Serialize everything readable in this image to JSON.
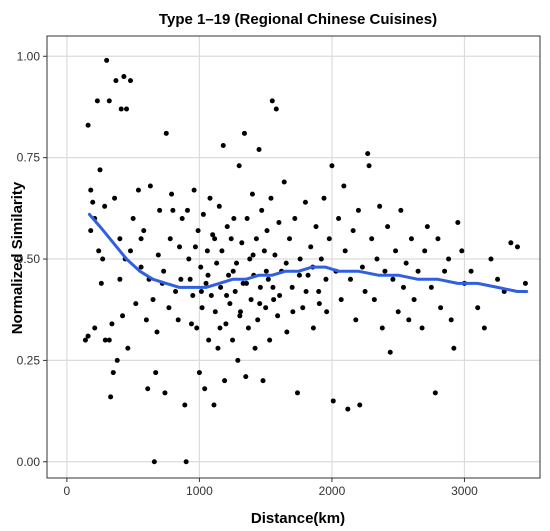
{
  "chart_data": {
    "type": "scatter",
    "title": "Type 1–19 (Regional Chinese Cuisines)",
    "xlabel": "Distance(km)",
    "ylabel": "Normalized Similarity",
    "xlim": [
      -150,
      3570
    ],
    "ylim": [
      -0.04,
      1.05
    ],
    "x_ticks": [
      0,
      1000,
      2000,
      3000
    ],
    "x_tick_labels": [
      "0",
      "1000",
      "2000",
      "3000"
    ],
    "y_ticks": [
      0.0,
      0.25,
      0.5,
      0.75,
      1.0
    ],
    "y_tick_labels": [
      "0.00",
      "0.25",
      "0.50",
      "0.75",
      "1.00"
    ],
    "grid": true,
    "colors": {
      "points": "#000000",
      "smooth_line": "#3060e0",
      "grid": "#dcdcdc",
      "axis": "#333333"
    },
    "points": [
      [
        160,
        0.83
      ],
      [
        180,
        0.67
      ],
      [
        195,
        0.64
      ],
      [
        210,
        0.6
      ],
      [
        230,
        0.89
      ],
      [
        250,
        0.72
      ],
      [
        270,
        0.5
      ],
      [
        285,
        0.63
      ],
      [
        300,
        0.99
      ],
      [
        320,
        0.89
      ],
      [
        330,
        0.16
      ],
      [
        350,
        0.22
      ],
      [
        370,
        0.94
      ],
      [
        400,
        0.55
      ],
      [
        410,
        0.87
      ],
      [
        430,
        0.95
      ],
      [
        450,
        0.87
      ],
      [
        480,
        0.94
      ],
      [
        140,
        0.3
      ],
      [
        160,
        0.31
      ],
      [
        180,
        0.57
      ],
      [
        210,
        0.33
      ],
      [
        240,
        0.52
      ],
      [
        260,
        0.44
      ],
      [
        290,
        0.3
      ],
      [
        320,
        0.3
      ],
      [
        340,
        0.34
      ],
      [
        360,
        0.65
      ],
      [
        380,
        0.25
      ],
      [
        400,
        0.45
      ],
      [
        420,
        0.36
      ],
      [
        440,
        0.5
      ],
      [
        460,
        0.28
      ],
      [
        480,
        0.52
      ],
      [
        500,
        0.6
      ],
      [
        520,
        0.39
      ],
      [
        540,
        0.67
      ],
      [
        560,
        0.48
      ],
      [
        580,
        0.57
      ],
      [
        600,
        0.35
      ],
      [
        610,
        0.18
      ],
      [
        630,
        0.68
      ],
      [
        650,
        0.4
      ],
      [
        660,
        0.0
      ],
      [
        670,
        0.22
      ],
      [
        690,
        0.51
      ],
      [
        700,
        0.62
      ],
      [
        720,
        0.44
      ],
      [
        740,
        0.17
      ],
      [
        750,
        0.81
      ],
      [
        770,
        0.38
      ],
      [
        780,
        0.55
      ],
      [
        800,
        0.62
      ],
      [
        820,
        0.42
      ],
      [
        840,
        0.35
      ],
      [
        850,
        0.53
      ],
      [
        870,
        0.6
      ],
      [
        890,
        0.14
      ],
      [
        900,
        0.0
      ],
      [
        910,
        0.62
      ],
      [
        920,
        0.5
      ],
      [
        930,
        0.45
      ],
      [
        950,
        0.41
      ],
      [
        960,
        0.67
      ],
      [
        980,
        0.33
      ],
      [
        990,
        0.57
      ],
      [
        1000,
        0.22
      ],
      [
        1010,
        0.48
      ],
      [
        1020,
        0.38
      ],
      [
        1030,
        0.61
      ],
      [
        1040,
        0.18
      ],
      [
        1050,
        0.44
      ],
      [
        1060,
        0.52
      ],
      [
        1070,
        0.3
      ],
      [
        1080,
        0.65
      ],
      [
        1090,
        0.41
      ],
      [
        1100,
        0.56
      ],
      [
        1110,
        0.14
      ],
      [
        1120,
        0.37
      ],
      [
        1130,
        0.49
      ],
      [
        1140,
        0.28
      ],
      [
        1150,
        0.63
      ],
      [
        1160,
        0.43
      ],
      [
        1170,
        0.52
      ],
      [
        1180,
        0.78
      ],
      [
        1190,
        0.2
      ],
      [
        1200,
        0.34
      ],
      [
        1210,
        0.58
      ],
      [
        1220,
        0.46
      ],
      [
        1230,
        0.39
      ],
      [
        1240,
        0.55
      ],
      [
        1250,
        0.3
      ],
      [
        1260,
        0.6
      ],
      [
        1270,
        0.42
      ],
      [
        1280,
        0.49
      ],
      [
        1290,
        0.25
      ],
      [
        1300,
        0.73
      ],
      [
        1310,
        0.37
      ],
      [
        1320,
        0.54
      ],
      [
        1330,
        0.44
      ],
      [
        1340,
        0.81
      ],
      [
        1350,
        0.21
      ],
      [
        1360,
        0.6
      ],
      [
        1370,
        0.33
      ],
      [
        1380,
        0.5
      ],
      [
        1390,
        0.4
      ],
      [
        1400,
        0.66
      ],
      [
        1410,
        0.46
      ],
      [
        1420,
        0.28
      ],
      [
        1430,
        0.55
      ],
      [
        1440,
        0.35
      ],
      [
        1450,
        0.77
      ],
      [
        1460,
        0.43
      ],
      [
        1470,
        0.62
      ],
      [
        1480,
        0.2
      ],
      [
        1490,
        0.52
      ],
      [
        1500,
        0.38
      ],
      [
        1510,
        0.57
      ],
      [
        1520,
        0.45
      ],
      [
        1530,
        0.3
      ],
      [
        1540,
        0.65
      ],
      [
        1550,
        0.89
      ],
      [
        1560,
        0.4
      ],
      [
        1570,
        0.51
      ],
      [
        1580,
        0.87
      ],
      [
        1590,
        0.36
      ],
      [
        1600,
        0.59
      ],
      [
        1620,
        0.47
      ],
      [
        1640,
        0.69
      ],
      [
        1660,
        0.32
      ],
      [
        1680,
        0.55
      ],
      [
        1700,
        0.43
      ],
      [
        1720,
        0.6
      ],
      [
        1740,
        0.17
      ],
      [
        1760,
        0.5
      ],
      [
        1780,
        0.38
      ],
      [
        1800,
        0.64
      ],
      [
        1820,
        0.46
      ],
      [
        1840,
        0.53
      ],
      [
        1860,
        0.33
      ],
      [
        1880,
        0.58
      ],
      [
        1900,
        0.42
      ],
      [
        1920,
        0.5
      ],
      [
        1940,
        0.65
      ],
      [
        1960,
        0.37
      ],
      [
        1980,
        0.55
      ],
      [
        2000,
        0.73
      ],
      [
        2010,
        0.15
      ],
      [
        2030,
        0.47
      ],
      [
        2050,
        0.6
      ],
      [
        2070,
        0.4
      ],
      [
        2090,
        0.68
      ],
      [
        2100,
        0.52
      ],
      [
        2120,
        0.13
      ],
      [
        2140,
        0.45
      ],
      [
        2160,
        0.57
      ],
      [
        2180,
        0.35
      ],
      [
        2200,
        0.62
      ],
      [
        2210,
        0.14
      ],
      [
        2230,
        0.48
      ],
      [
        2250,
        0.42
      ],
      [
        2270,
        0.76
      ],
      [
        2280,
        0.73
      ],
      [
        2300,
        0.55
      ],
      [
        2320,
        0.4
      ],
      [
        2340,
        0.5
      ],
      [
        2360,
        0.63
      ],
      [
        2380,
        0.33
      ],
      [
        2400,
        0.47
      ],
      [
        2420,
        0.58
      ],
      [
        2440,
        0.27
      ],
      [
        2460,
        0.45
      ],
      [
        2480,
        0.52
      ],
      [
        2500,
        0.37
      ],
      [
        2520,
        0.62
      ],
      [
        2540,
        0.43
      ],
      [
        2560,
        0.49
      ],
      [
        2580,
        0.35
      ],
      [
        2600,
        0.55
      ],
      [
        2620,
        0.4
      ],
      [
        2650,
        0.47
      ],
      [
        2680,
        0.33
      ],
      [
        2700,
        0.52
      ],
      [
        2720,
        0.58
      ],
      [
        2750,
        0.43
      ],
      [
        2780,
        0.17
      ],
      [
        2800,
        0.55
      ],
      [
        2820,
        0.38
      ],
      [
        2850,
        0.47
      ],
      [
        2880,
        0.5
      ],
      [
        2900,
        0.35
      ],
      [
        2920,
        0.28
      ],
      [
        2950,
        0.59
      ],
      [
        2980,
        0.52
      ],
      [
        3000,
        0.44
      ],
      [
        3050,
        0.47
      ],
      [
        3100,
        0.38
      ],
      [
        3150,
        0.33
      ],
      [
        3200,
        0.5
      ],
      [
        3250,
        0.45
      ],
      [
        3300,
        0.42
      ],
      [
        3350,
        0.54
      ],
      [
        3400,
        0.53
      ],
      [
        3460,
        0.44
      ],
      [
        560,
        0.55
      ],
      [
        620,
        0.45
      ],
      [
        680,
        0.32
      ],
      [
        730,
        0.47
      ],
      [
        790,
        0.66
      ],
      [
        860,
        0.45
      ],
      [
        940,
        0.34
      ],
      [
        970,
        0.53
      ],
      [
        1015,
        0.42
      ],
      [
        1065,
        0.46
      ],
      [
        1115,
        0.55
      ],
      [
        1155,
        0.33
      ],
      [
        1205,
        0.41
      ],
      [
        1255,
        0.47
      ],
      [
        1305,
        0.36
      ],
      [
        1355,
        0.44
      ],
      [
        1405,
        0.51
      ],
      [
        1455,
        0.39
      ],
      [
        1505,
        0.47
      ],
      [
        1555,
        0.43
      ],
      [
        1605,
        0.41
      ],
      [
        1655,
        0.49
      ],
      [
        1705,
        0.37
      ],
      [
        1755,
        0.46
      ],
      [
        1805,
        0.42
      ],
      [
        1855,
        0.48
      ],
      [
        1905,
        0.39
      ],
      [
        1955,
        0.45
      ]
    ],
    "smooth_line": [
      [
        170,
        0.61
      ],
      [
        250,
        0.58
      ],
      [
        350,
        0.54
      ],
      [
        450,
        0.5
      ],
      [
        550,
        0.47
      ],
      [
        650,
        0.45
      ],
      [
        750,
        0.44
      ],
      [
        850,
        0.43
      ],
      [
        950,
        0.43
      ],
      [
        1050,
        0.43
      ],
      [
        1150,
        0.44
      ],
      [
        1250,
        0.45
      ],
      [
        1350,
        0.45
      ],
      [
        1450,
        0.46
      ],
      [
        1550,
        0.46
      ],
      [
        1650,
        0.47
      ],
      [
        1750,
        0.47
      ],
      [
        1850,
        0.48
      ],
      [
        1950,
        0.48
      ],
      [
        2050,
        0.47
      ],
      [
        2200,
        0.47
      ],
      [
        2350,
        0.46
      ],
      [
        2500,
        0.46
      ],
      [
        2650,
        0.45
      ],
      [
        2800,
        0.45
      ],
      [
        2950,
        0.44
      ],
      [
        3100,
        0.44
      ],
      [
        3250,
        0.43
      ],
      [
        3400,
        0.42
      ],
      [
        3470,
        0.42
      ]
    ]
  }
}
